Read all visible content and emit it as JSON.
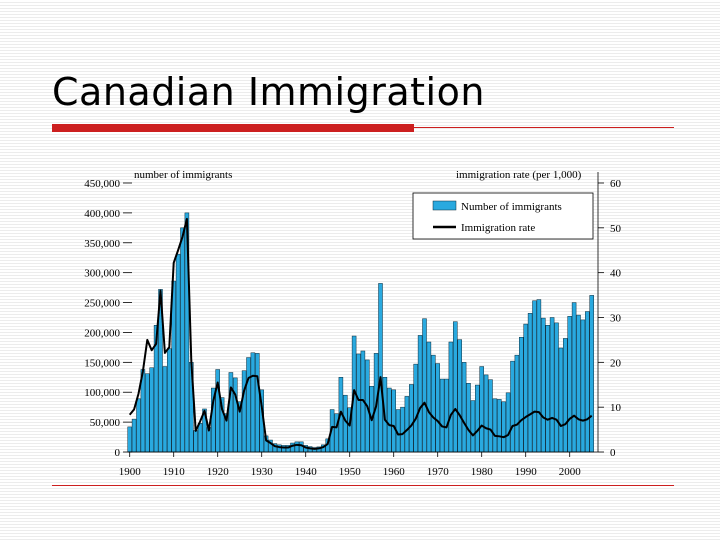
{
  "slide": {
    "title": "Canadian Immigration"
  },
  "chart_data": {
    "type": "bar+line",
    "left_axis_title": "number of immigrants",
    "right_axis_title": "immigration rate (per 1,000)",
    "left_ticks": [
      "0",
      "50,000",
      "100,000",
      "150,000",
      "200,000",
      "250,000",
      "300,000",
      "350,000",
      "400,000",
      "450,000"
    ],
    "left_tick_values": [
      0,
      50000,
      100000,
      150000,
      200000,
      250000,
      300000,
      350000,
      400000,
      450000
    ],
    "right_ticks": [
      "0",
      "10",
      "20",
      "30",
      "40",
      "50",
      "60"
    ],
    "right_tick_values": [
      0,
      10,
      20,
      30,
      40,
      50,
      60
    ],
    "ylim_left": [
      0,
      450000
    ],
    "ylim_right": [
      0,
      60
    ],
    "xlim": [
      1900,
      2006
    ],
    "x_ticks": [
      "1900",
      "1910",
      "1920",
      "1930",
      "1940",
      "1950",
      "1960",
      "1970",
      "1980",
      "1990",
      "2000"
    ],
    "x_tick_values": [
      1900,
      1910,
      1920,
      1930,
      1940,
      1950,
      1960,
      1970,
      1980,
      1990,
      2000
    ],
    "legend": {
      "position": "top-right",
      "bar_label": "Number of immigrants",
      "line_label": "Immigration rate"
    },
    "colors": {
      "bar": "#29a9df",
      "bar_edge": "#0a2a3a",
      "line": "#000000",
      "frame": "#000000"
    },
    "years": [
      1900,
      1901,
      1902,
      1903,
      1904,
      1905,
      1906,
      1907,
      1908,
      1909,
      1910,
      1911,
      1912,
      1913,
      1914,
      1915,
      1916,
      1917,
      1918,
      1919,
      1920,
      1921,
      1922,
      1923,
      1924,
      1925,
      1926,
      1927,
      1928,
      1929,
      1930,
      1931,
      1932,
      1933,
      1934,
      1935,
      1936,
      1937,
      1938,
      1939,
      1940,
      1941,
      1942,
      1943,
      1944,
      1945,
      1946,
      1947,
      1948,
      1949,
      1950,
      1951,
      1952,
      1953,
      1954,
      1955,
      1956,
      1957,
      1958,
      1959,
      1960,
      1961,
      1962,
      1963,
      1964,
      1965,
      1966,
      1967,
      1968,
      1969,
      1970,
      1971,
      1972,
      1973,
      1974,
      1975,
      1976,
      1977,
      1978,
      1979,
      1980,
      1981,
      1982,
      1983,
      1984,
      1985,
      1986,
      1987,
      1988,
      1989,
      1990,
      1991,
      1992,
      1993,
      1994,
      1995,
      1996,
      1997,
      1998,
      1999,
      2000,
      2001,
      2002,
      2003,
      2004,
      2005
    ],
    "immigrants": [
      42000,
      55000,
      89000,
      138000,
      131000,
      141000,
      212000,
      272000,
      143000,
      173000,
      286000,
      331000,
      375000,
      400000,
      150000,
      36000,
      48000,
      72000,
      41000,
      107000,
      138000,
      91000,
      64000,
      133000,
      124000,
      84000,
      136000,
      158000,
      166000,
      165000,
      104000,
      27000,
      20000,
      14000,
      12000,
      11000,
      11000,
      15000,
      17000,
      17000,
      11000,
      9000,
      7500,
      8500,
      12000,
      22000,
      71000,
      64000,
      125000,
      95000,
      74000,
      194000,
      164000,
      169000,
      154000,
      110000,
      165000,
      282000,
      125000,
      107000,
      104000,
      71000,
      75000,
      93000,
      113000,
      147000,
      195000,
      223000,
      184000,
      162000,
      148000,
      122000,
      122000,
      184000,
      218000,
      188000,
      150000,
      115000,
      86000,
      112000,
      143000,
      129000,
      121000,
      89000,
      88000,
      84000,
      99000,
      152000,
      162000,
      192000,
      214000,
      232000,
      253000,
      255000,
      224000,
      212000,
      225000,
      216000,
      174000,
      190000,
      227000,
      250000,
      229000,
      221000,
      235000,
      262000
    ],
    "rate": [
      8.3,
      9.5,
      13,
      18,
      25,
      22.7,
      24.1,
      36,
      22.1,
      23.4,
      42.2,
      45,
      48,
      52,
      20.3,
      4.7,
      6.8,
      9.2,
      4.8,
      11.4,
      15.5,
      9.5,
      7,
      14.4,
      12.8,
      9,
      13.7,
      16.5,
      17,
      16.9,
      10.2,
      2.6,
      2,
      1.3,
      1.1,
      1,
      1,
      1.4,
      1.6,
      1.5,
      1,
      0.8,
      0.7,
      0.8,
      1.1,
      1.8,
      5.6,
      5.5,
      9,
      7,
      5.9,
      13.8,
      11.6,
      11.6,
      10.2,
      7.1,
      10.2,
      16.7,
      7.2,
      6,
      5.8,
      3.9,
      4,
      4.9,
      5.9,
      7.4,
      9.8,
      11,
      8.9,
      7.7,
      6.9,
      5.7,
      5.5,
      8.3,
      9.6,
      8.2,
      6.5,
      4.9,
      3.7,
      4.7,
      5.9,
      5.3,
      5,
      3.6,
      3.5,
      3.3,
      3.8,
      5.8,
      6.1,
      7.1,
      7.8,
      8.4,
      9,
      8.9,
      7.7,
      7.2,
      7.6,
      7.2,
      5.8,
      6.2,
      7.4,
      8.1,
      7.3,
      7,
      7.3,
      8.1
    ]
  }
}
